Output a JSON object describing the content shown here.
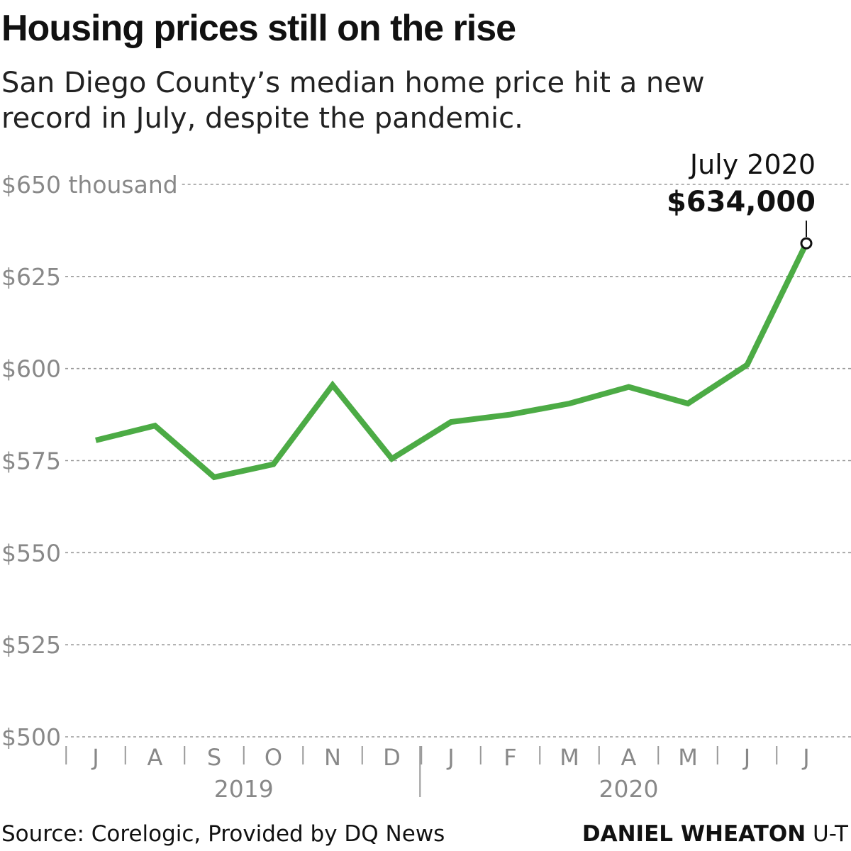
{
  "title": "Housing prices still on the rise",
  "subtitle_lines": [
    "San Diego County’s median home price hit a new",
    "record in July, despite the pandemic."
  ],
  "source": "Source: Corelogic, Provided by DQ News",
  "credit": {
    "name": "DANIEL WHEATON",
    "org": "U-T"
  },
  "colors": {
    "line": "#4cab45",
    "grid": "#999999",
    "axis_text": "#888888",
    "text": "#111111"
  },
  "chart_data": {
    "type": "line",
    "title": "Housing prices still on the rise",
    "x": [
      "J",
      "A",
      "S",
      "O",
      "N",
      "D",
      "J",
      "F",
      "M",
      "A",
      "M",
      "J",
      "J"
    ],
    "year_groups": [
      {
        "label": "2019",
        "start": 0,
        "end": 5
      },
      {
        "label": "2020",
        "start": 6,
        "end": 12
      }
    ],
    "series": [
      {
        "values": [
          580.5,
          584.5,
          570.5,
          574,
          595.5,
          575.5,
          585.5,
          587.5,
          590.5,
          595,
          590.5,
          601,
          634
        ]
      }
    ],
    "y_ticks": [
      500,
      525,
      550,
      575,
      600,
      625,
      650
    ],
    "y_tick_labels": [
      "$500",
      "$525",
      "$550",
      "$575",
      "$600",
      "$625",
      "$650 thousand"
    ],
    "ylim": [
      500,
      650
    ],
    "grid": true,
    "annotation": {
      "index": 12,
      "label": "July 2020",
      "value_label": "$634,000"
    }
  }
}
